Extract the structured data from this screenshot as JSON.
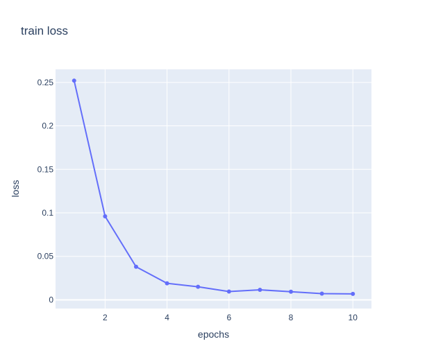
{
  "chart_data": {
    "type": "line",
    "title": "train loss",
    "xlabel": "epochs",
    "ylabel": "loss",
    "x_ticks": [
      2,
      4,
      6,
      8,
      10
    ],
    "y_ticks": [
      0,
      0.05,
      0.1,
      0.15,
      0.2,
      0.25
    ],
    "x_tick_labels": [
      "2",
      "4",
      "6",
      "8",
      "10"
    ],
    "y_tick_labels": [
      "0",
      "0.05",
      "0.1",
      "0.15",
      "0.2",
      "0.25"
    ],
    "xlim": [
      0.4,
      10.6
    ],
    "ylim": [
      -0.01,
      0.265
    ],
    "grid": true,
    "colors": {
      "plot_background": "#e5ecf6",
      "grid": "#ffffff",
      "series": "#636efa",
      "text": "#2a3f5f"
    },
    "series": [
      {
        "x": [
          1,
          2,
          3,
          4,
          5,
          6,
          7,
          8,
          9,
          10
        ],
        "values": [
          0.252,
          0.096,
          0.038,
          0.019,
          0.015,
          0.0095,
          0.0115,
          0.0093,
          0.0071,
          0.0068
        ]
      }
    ]
  }
}
